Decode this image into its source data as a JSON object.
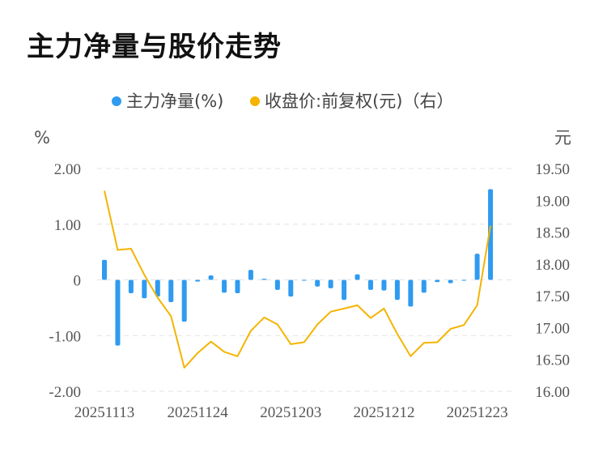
{
  "title": "主力净量与股价走势",
  "chart_data": {
    "type": "bar+line",
    "legend": [
      {
        "label": "主力净量(%)",
        "color": "#2f9bf0"
      },
      {
        "label": "收盘价:前复权(元)（右）",
        "color": "#f4b400"
      }
    ],
    "left_axis": {
      "unit": "%",
      "ticks": [
        "2.00",
        "1.00",
        "0",
        "-1.00",
        "-2.00"
      ],
      "range": [
        -2,
        2
      ]
    },
    "right_axis": {
      "unit": "元",
      "ticks": [
        "19.50",
        "19.00",
        "18.50",
        "18.00",
        "17.50",
        "17.00",
        "16.50",
        "16.00"
      ],
      "range": [
        16,
        19.5
      ]
    },
    "x_tick_labels": [
      "20251113",
      "20251124",
      "20251203",
      "20251212",
      "20251223"
    ],
    "x_tick_index": [
      0,
      7,
      14,
      21,
      28
    ],
    "series": [
      {
        "name": "主力净量(%)",
        "type": "bar",
        "values": [
          0.36,
          -1.18,
          -0.24,
          -0.33,
          -0.3,
          -0.4,
          -0.75,
          -0.03,
          0.08,
          -0.23,
          -0.24,
          0.18,
          0.02,
          -0.18,
          -0.3,
          -0.01,
          -0.12,
          -0.15,
          -0.36,
          0.1,
          -0.18,
          -0.19,
          -0.36,
          -0.48,
          -0.23,
          -0.04,
          -0.06,
          -0.01,
          0.47,
          1.63
        ]
      },
      {
        "name": "收盘价:前复权(元)（右）",
        "type": "line",
        "values": [
          19.15,
          18.22,
          18.24,
          17.83,
          17.47,
          17.18,
          16.37,
          16.6,
          16.78,
          16.62,
          16.55,
          16.95,
          17.16,
          17.05,
          16.74,
          16.77,
          17.05,
          17.25,
          17.3,
          17.35,
          17.15,
          17.3,
          16.9,
          16.55,
          16.76,
          16.77,
          16.98,
          17.04,
          17.35,
          18.6
        ]
      }
    ],
    "grid": "horizontal-dashed"
  }
}
